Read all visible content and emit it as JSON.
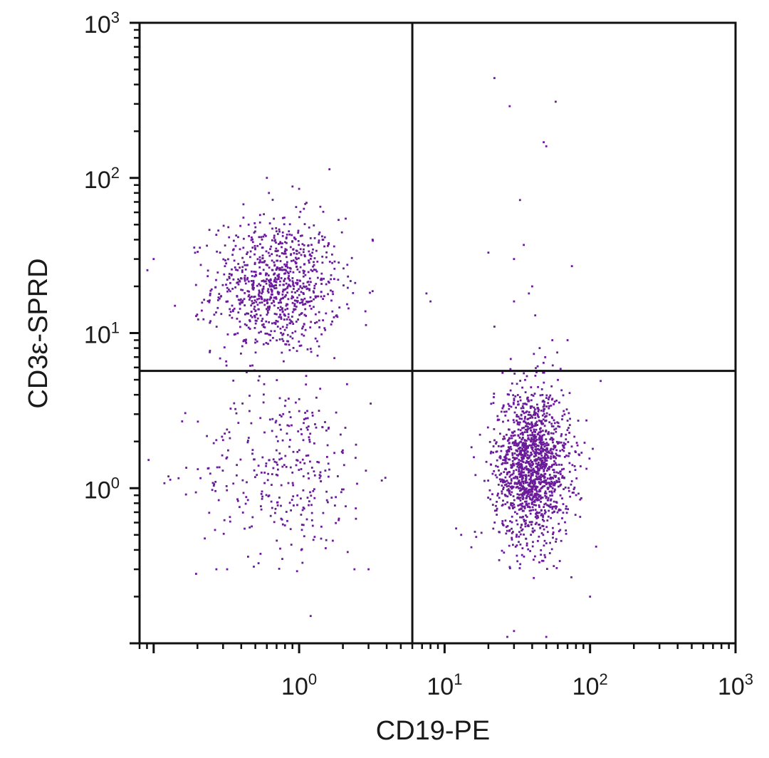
{
  "chart_data": {
    "type": "scatter",
    "title": "",
    "xlabel": "CD19-PE",
    "ylabel": "CD3ε-SPRD",
    "x_scale": "log",
    "y_scale": "log",
    "xlim": [
      0.08,
      1000
    ],
    "ylim": [
      0.1,
      1000
    ],
    "x_ticks": [
      {
        "base": "10",
        "exp": "0",
        "value": 1
      },
      {
        "base": "10",
        "exp": "1",
        "value": 10
      },
      {
        "base": "10",
        "exp": "2",
        "value": 100
      },
      {
        "base": "10",
        "exp": "3",
        "value": 1000
      }
    ],
    "y_ticks": [
      {
        "base": "10",
        "exp": "0",
        "value": 1
      },
      {
        "base": "10",
        "exp": "1",
        "value": 10
      },
      {
        "base": "10",
        "exp": "2",
        "value": 100
      },
      {
        "base": "10",
        "exp": "3",
        "value": 1000
      }
    ],
    "quadrant_gates": {
      "x": 6.0,
      "y": 5.7
    },
    "point_color": "#6a1b9a",
    "grid": false,
    "legend": "none",
    "populations": [
      {
        "quadrant": "upper-left",
        "center_x": 0.7,
        "center_y": 20,
        "spread_x_log": 0.22,
        "spread_y_log": 0.22,
        "count": 900
      },
      {
        "quadrant": "lower-left",
        "center_x": 0.8,
        "center_y": 1.3,
        "spread_x_log": 0.3,
        "spread_y_log": 0.28,
        "count": 330
      },
      {
        "quadrant": "lower-right",
        "center_x": 40,
        "center_y": 1.4,
        "spread_x_log": 0.13,
        "spread_y_log": 0.25,
        "count": 1500
      }
    ],
    "outliers": [
      [
        22,
        440
      ],
      [
        28,
        290
      ],
      [
        58,
        310
      ],
      [
        48,
        170
      ],
      [
        50,
        160
      ],
      [
        33,
        72
      ],
      [
        20,
        33
      ],
      [
        35,
        37
      ],
      [
        30,
        30
      ],
      [
        75,
        27
      ],
      [
        40,
        20
      ],
      [
        38,
        18
      ],
      [
        30,
        16
      ],
      [
        42,
        13
      ],
      [
        22,
        11
      ],
      [
        45,
        8
      ],
      [
        55,
        9
      ],
      [
        70,
        9
      ],
      [
        7.5,
        18
      ],
      [
        8,
        16
      ],
      [
        1,
        85
      ],
      [
        0.9,
        88
      ],
      [
        0.6,
        100
      ],
      [
        0.62,
        80
      ],
      [
        0.1,
        30
      ],
      [
        0.14,
        15
      ],
      [
        3.2,
        40
      ],
      [
        1.2,
        0.15
      ],
      [
        0.32,
        0.3
      ],
      [
        0.27,
        0.3
      ],
      [
        2.4,
        0.3
      ],
      [
        3.0,
        0.3
      ],
      [
        110,
        0.42
      ],
      [
        100,
        0.2
      ],
      [
        13,
        0.5
      ],
      [
        12,
        0.55
      ],
      [
        27,
        0.11
      ],
      [
        30,
        0.12
      ],
      [
        50,
        0.11
      ]
    ]
  }
}
